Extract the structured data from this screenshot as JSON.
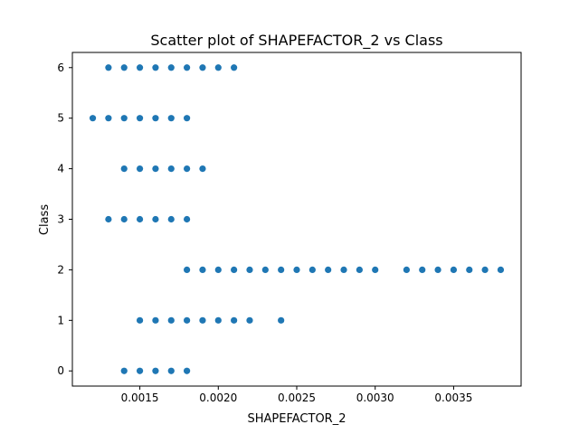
{
  "chart_data": {
    "type": "scatter",
    "title": "Scatter plot of SHAPEFACTOR_2 vs Class",
    "xlabel": "SHAPEFACTOR_2",
    "ylabel": "Class",
    "xlim": [
      0.00107,
      0.00393
    ],
    "ylim": [
      -0.3,
      6.3
    ],
    "xticks": [
      0.0015,
      0.002,
      0.0025,
      0.003,
      0.0035
    ],
    "xtick_labels": [
      "0.0015",
      "0.0020",
      "0.0025",
      "0.0030",
      "0.0035"
    ],
    "yticks": [
      0,
      1,
      2,
      3,
      4,
      5,
      6
    ],
    "ytick_labels": [
      "0",
      "1",
      "2",
      "3",
      "4",
      "5",
      "6"
    ],
    "grid": false,
    "marker_color": "#1f77b4",
    "points": [
      {
        "x": 0.0013,
        "y": 6
      },
      {
        "x": 0.0014,
        "y": 6
      },
      {
        "x": 0.0015,
        "y": 6
      },
      {
        "x": 0.0016,
        "y": 6
      },
      {
        "x": 0.0017,
        "y": 6
      },
      {
        "x": 0.0018,
        "y": 6
      },
      {
        "x": 0.0019,
        "y": 6
      },
      {
        "x": 0.002,
        "y": 6
      },
      {
        "x": 0.0021,
        "y": 6
      },
      {
        "x": 0.0012,
        "y": 5
      },
      {
        "x": 0.0013,
        "y": 5
      },
      {
        "x": 0.0014,
        "y": 5
      },
      {
        "x": 0.0015,
        "y": 5
      },
      {
        "x": 0.0016,
        "y": 5
      },
      {
        "x": 0.0017,
        "y": 5
      },
      {
        "x": 0.0018,
        "y": 5
      },
      {
        "x": 0.0014,
        "y": 4
      },
      {
        "x": 0.0015,
        "y": 4
      },
      {
        "x": 0.0016,
        "y": 4
      },
      {
        "x": 0.0017,
        "y": 4
      },
      {
        "x": 0.0018,
        "y": 4
      },
      {
        "x": 0.0019,
        "y": 4
      },
      {
        "x": 0.0013,
        "y": 3
      },
      {
        "x": 0.0014,
        "y": 3
      },
      {
        "x": 0.0015,
        "y": 3
      },
      {
        "x": 0.0016,
        "y": 3
      },
      {
        "x": 0.0017,
        "y": 3
      },
      {
        "x": 0.0018,
        "y": 3
      },
      {
        "x": 0.0018,
        "y": 2
      },
      {
        "x": 0.0019,
        "y": 2
      },
      {
        "x": 0.002,
        "y": 2
      },
      {
        "x": 0.0021,
        "y": 2
      },
      {
        "x": 0.0022,
        "y": 2
      },
      {
        "x": 0.0023,
        "y": 2
      },
      {
        "x": 0.0024,
        "y": 2
      },
      {
        "x": 0.0025,
        "y": 2
      },
      {
        "x": 0.0026,
        "y": 2
      },
      {
        "x": 0.0027,
        "y": 2
      },
      {
        "x": 0.0028,
        "y": 2
      },
      {
        "x": 0.0029,
        "y": 2
      },
      {
        "x": 0.003,
        "y": 2
      },
      {
        "x": 0.0032,
        "y": 2
      },
      {
        "x": 0.0033,
        "y": 2
      },
      {
        "x": 0.0034,
        "y": 2
      },
      {
        "x": 0.0035,
        "y": 2
      },
      {
        "x": 0.0036,
        "y": 2
      },
      {
        "x": 0.0037,
        "y": 2
      },
      {
        "x": 0.0038,
        "y": 2
      },
      {
        "x": 0.0015,
        "y": 1
      },
      {
        "x": 0.0016,
        "y": 1
      },
      {
        "x": 0.0017,
        "y": 1
      },
      {
        "x": 0.0018,
        "y": 1
      },
      {
        "x": 0.0019,
        "y": 1
      },
      {
        "x": 0.002,
        "y": 1
      },
      {
        "x": 0.0021,
        "y": 1
      },
      {
        "x": 0.0022,
        "y": 1
      },
      {
        "x": 0.0024,
        "y": 1
      },
      {
        "x": 0.0014,
        "y": 0
      },
      {
        "x": 0.0015,
        "y": 0
      },
      {
        "x": 0.0016,
        "y": 0
      },
      {
        "x": 0.0017,
        "y": 0
      },
      {
        "x": 0.0018,
        "y": 0
      }
    ]
  }
}
